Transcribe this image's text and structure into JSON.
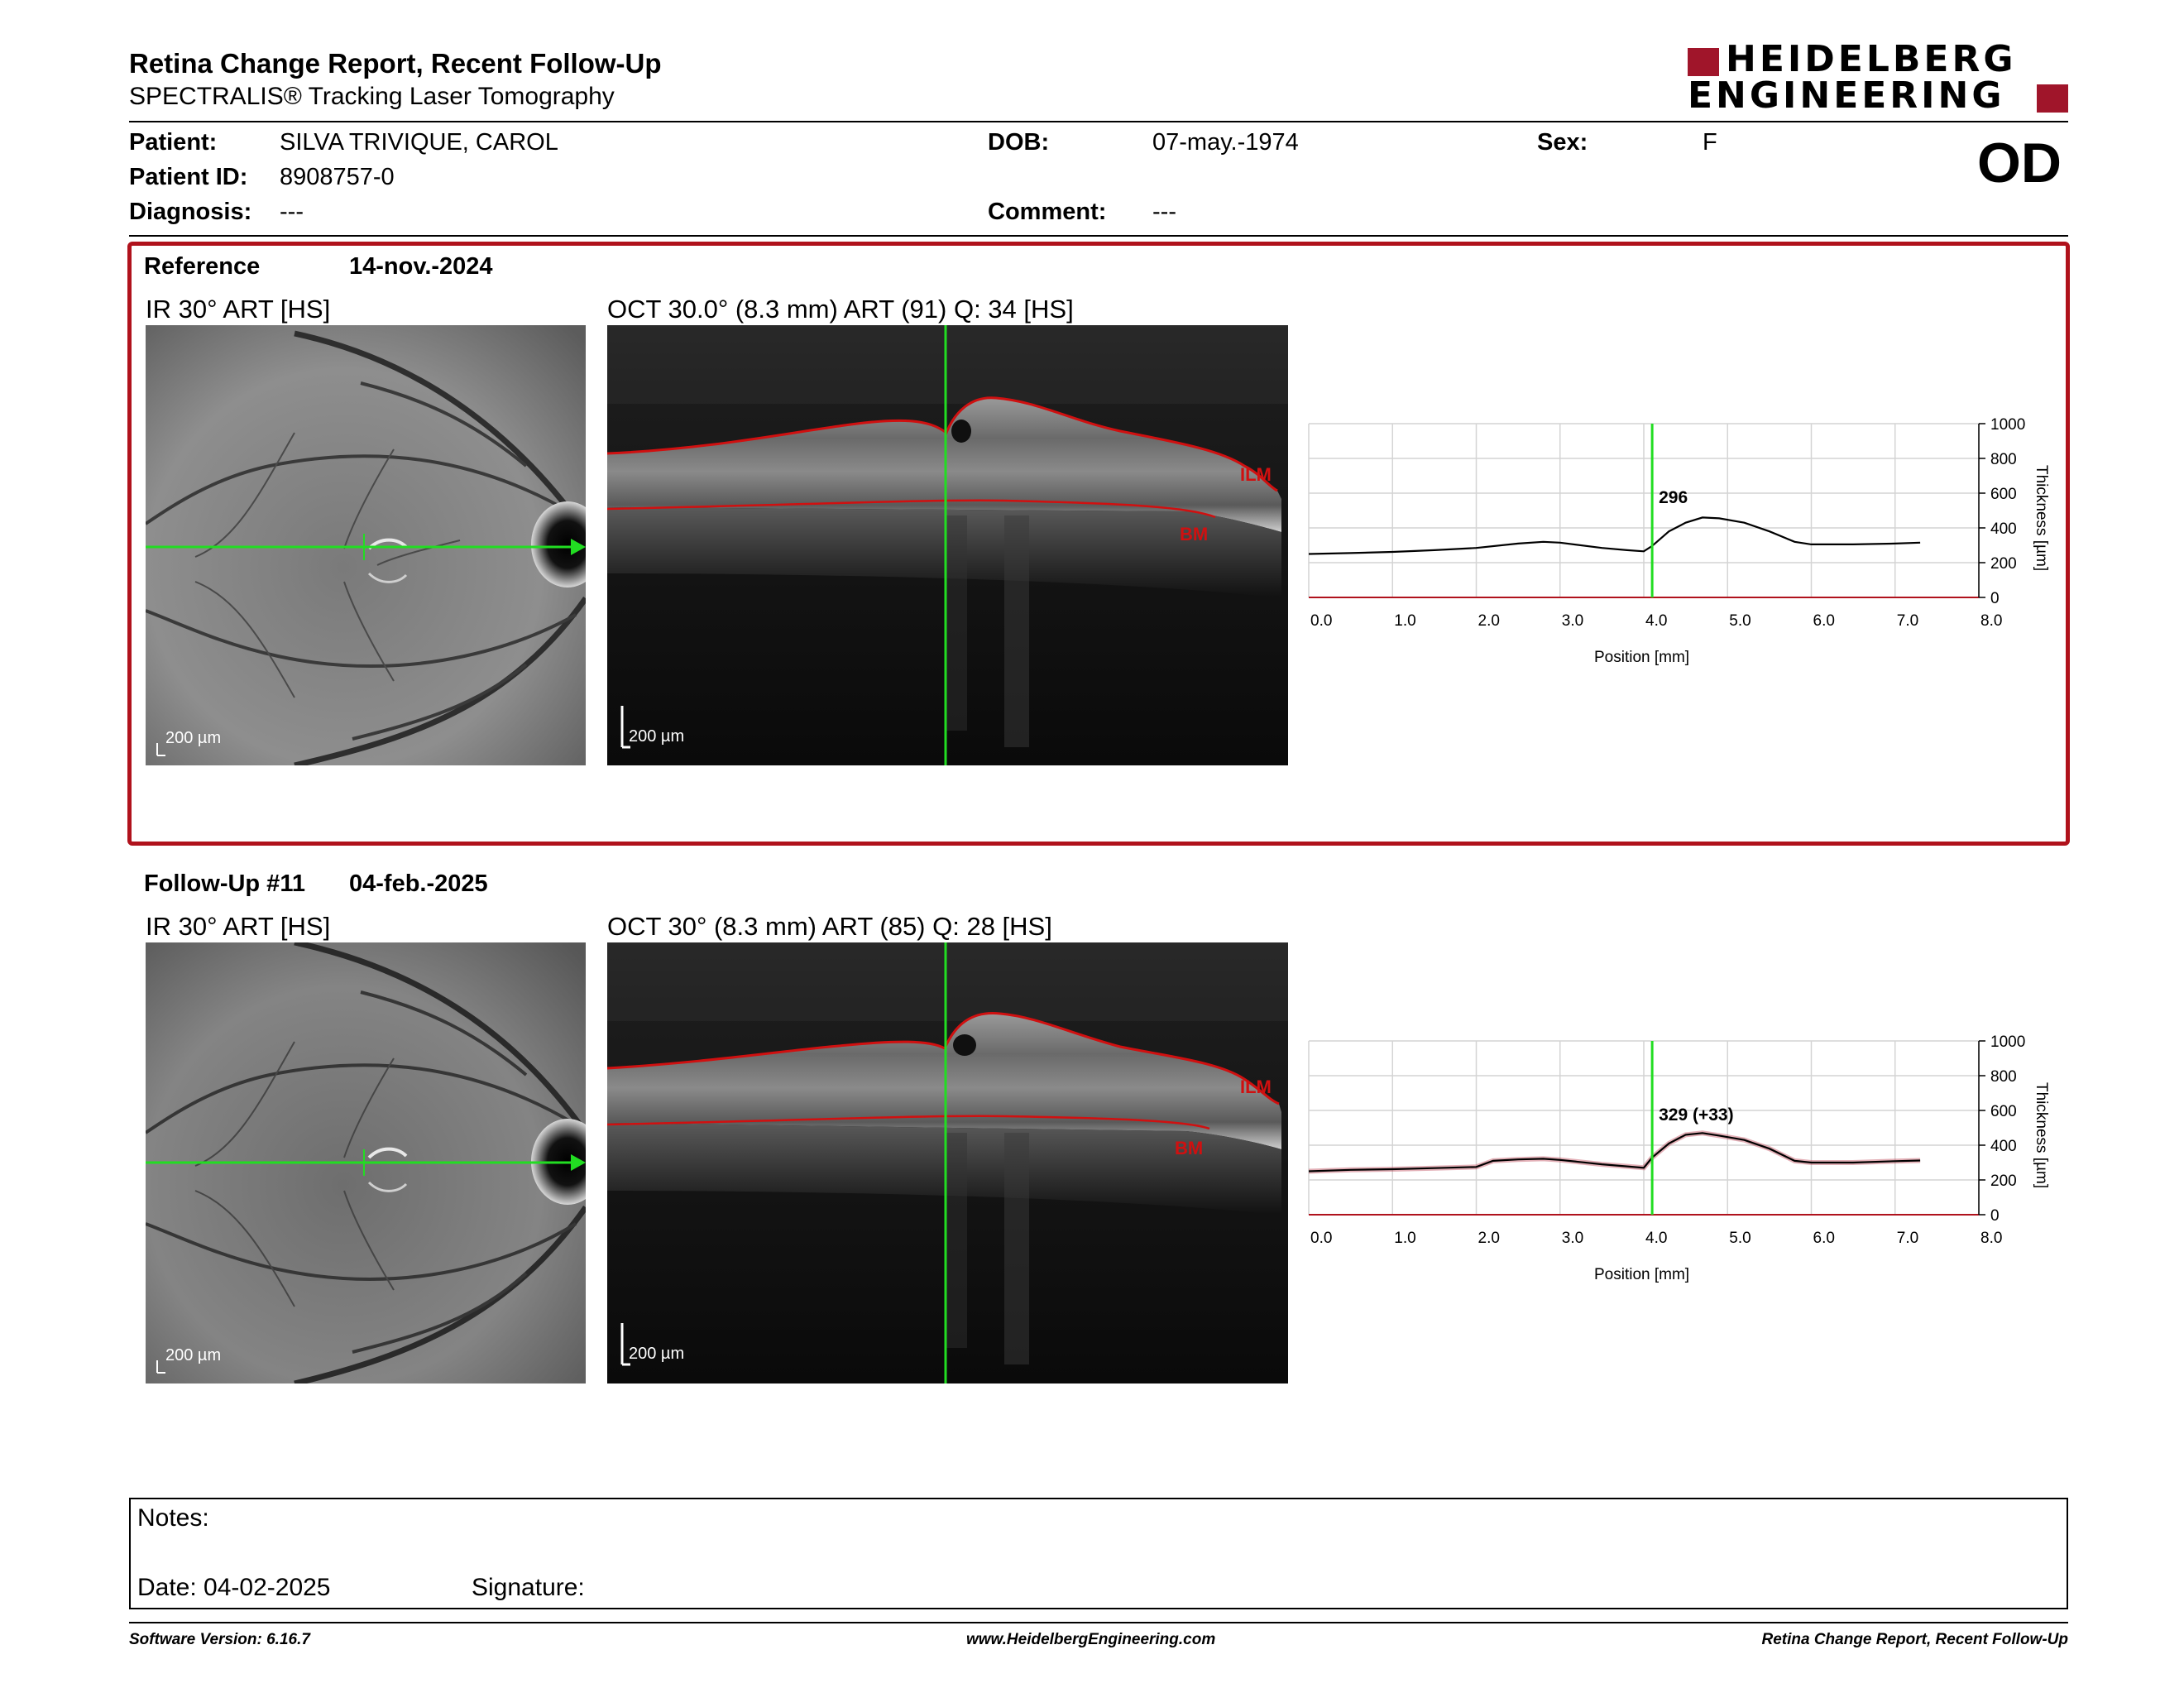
{
  "header": {
    "title": "Retina Change Report, Recent Follow-Up",
    "subtitle": "SPECTRALIS® Tracking Laser Tomography",
    "logo_line1": "HEIDELBERG",
    "logo_line2": "ENGINEERING",
    "eye": "OD"
  },
  "patient": {
    "patient_label": "Patient:",
    "patient_value": "SILVA TRIVIQUE, CAROL",
    "id_label": "Patient ID:",
    "id_value": "8908757-0",
    "diagnosis_label": "Diagnosis:",
    "diagnosis_value": "---",
    "dob_label": "DOB:",
    "dob_value": "07-may.-1974",
    "comment_label": "Comment:",
    "comment_value": "---",
    "sex_label": "Sex:",
    "sex_value": "F"
  },
  "reference": {
    "label": "Reference",
    "date": "14-nov.-2024",
    "ir_label": "IR 30° ART [HS]",
    "oct_label": "OCT 30.0° (8.3 mm) ART (91) Q: 34 [HS]",
    "ir_scale": "200 µm",
    "oct_scale": "200 µm",
    "ilm_label": "ILM",
    "bm_label": "BM"
  },
  "followup": {
    "label": "Follow-Up #11",
    "date": "04-feb.-2025",
    "ir_label": "IR 30° ART [HS]",
    "oct_label": "OCT 30° (8.3 mm) ART (85) Q: 28 [HS]",
    "ir_scale": "200 µm",
    "oct_scale": "200 µm",
    "ilm_label": "ILM",
    "bm_label": "BM"
  },
  "notes": {
    "notes_label": "Notes:",
    "date_label": "Date: 04-02-2025",
    "signature_label": "Signature:"
  },
  "footer": {
    "software": "Software Version: 6.16.7",
    "website": "www.HeidelbergEngineering.com",
    "report_name": "Retina Change Report, Recent Follow-Up"
  },
  "colors": {
    "accent_red": "#b0121c",
    "scan_green": "#22dd22",
    "segmentation_red": "#d01010"
  },
  "chart_data": [
    {
      "type": "line",
      "xlabel": "Position [mm]",
      "ylabel": "Thickness [µm]",
      "xlim": [
        0,
        8.0
      ],
      "ylim": [
        0,
        1000
      ],
      "x_ticks": [
        "0.0",
        "1.0",
        "2.0",
        "3.0",
        "4.0",
        "5.0",
        "6.0",
        "7.0",
        "8.0"
      ],
      "y_ticks": [
        "0",
        "200",
        "400",
        "600",
        "800",
        "1000"
      ],
      "cursor_x": 4.1,
      "cursor_label": "296",
      "grid": true,
      "series": [
        {
          "x": [
            0,
            0.5,
            1.0,
            1.5,
            2.0,
            2.5,
            2.8,
            3.0,
            3.5,
            3.8,
            4.0,
            4.1,
            4.3,
            4.5,
            4.7,
            4.9,
            5.2,
            5.5,
            5.8,
            6.0,
            6.5,
            7.0,
            7.3
          ],
          "values": [
            250,
            255,
            262,
            272,
            285,
            310,
            320,
            315,
            285,
            272,
            265,
            296,
            380,
            430,
            460,
            455,
            430,
            380,
            320,
            305,
            305,
            310,
            315
          ]
        }
      ]
    },
    {
      "type": "line",
      "xlabel": "Position [mm]",
      "ylabel": "Thickness [µm]",
      "xlim": [
        0,
        8.0
      ],
      "ylim": [
        0,
        1000
      ],
      "x_ticks": [
        "0.0",
        "1.0",
        "2.0",
        "3.0",
        "4.0",
        "5.0",
        "6.0",
        "7.0",
        "8.0"
      ],
      "y_ticks": [
        "0",
        "200",
        "400",
        "600",
        "800",
        "1000"
      ],
      "cursor_x": 4.1,
      "cursor_label": "329 (+33)",
      "grid": true,
      "series": [
        {
          "x": [
            0,
            0.5,
            1.0,
            1.5,
            2.0,
            2.2,
            2.5,
            2.8,
            3.0,
            3.5,
            3.8,
            4.0,
            4.1,
            4.3,
            4.5,
            4.7,
            4.9,
            5.2,
            5.5,
            5.8,
            6.0,
            6.5,
            7.0,
            7.3
          ],
          "values": [
            250,
            258,
            262,
            268,
            275,
            310,
            318,
            322,
            315,
            290,
            278,
            270,
            329,
            410,
            460,
            470,
            455,
            430,
            380,
            310,
            300,
            300,
            308,
            312
          ]
        }
      ]
    }
  ]
}
